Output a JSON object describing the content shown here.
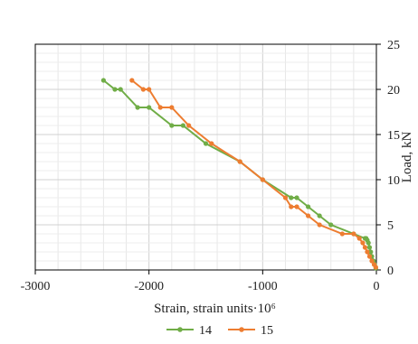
{
  "chart_data": {
    "type": "scatter",
    "title": "",
    "xlabel": "Strain, strain units·10⁶",
    "ylabel": "Load, kN",
    "xlim": [
      -3000,
      0
    ],
    "ylim": [
      0,
      25
    ],
    "xticks": [
      -3000,
      -2000,
      -1000,
      0
    ],
    "xtick_labels": [
      "-3000",
      "-2000",
      "-1000",
      "0"
    ],
    "yticks": [
      0,
      5,
      10,
      15,
      20,
      25
    ],
    "ytick_labels": [
      "0",
      "5",
      "10",
      "15",
      "20",
      "25"
    ],
    "y_axis_position": "right",
    "grid": true,
    "legend_position": "bottom",
    "series": [
      {
        "name": "14",
        "color": "#70ad47",
        "points": [
          [
            -5,
            0.2
          ],
          [
            -15,
            0.6
          ],
          [
            -25,
            1.0
          ],
          [
            -40,
            1.5
          ],
          [
            -50,
            2.0
          ],
          [
            -60,
            2.5
          ],
          [
            -70,
            3.0
          ],
          [
            -80,
            3.3
          ],
          [
            -90,
            3.5
          ],
          [
            -100,
            3.5
          ],
          [
            -200,
            4.0
          ],
          [
            -400,
            5.0
          ],
          [
            -500,
            6.0
          ],
          [
            -600,
            7.0
          ],
          [
            -700,
            8.0
          ],
          [
            -750,
            8.0
          ],
          [
            -1000,
            10.0
          ],
          [
            -1200,
            12.0
          ],
          [
            -1500,
            14.0
          ],
          [
            -1700,
            16.0
          ],
          [
            -1800,
            16.0
          ],
          [
            -2000,
            18.0
          ],
          [
            -2100,
            18.0
          ],
          [
            -2250,
            20.0
          ],
          [
            -2300,
            20.0
          ],
          [
            -2400,
            21.0
          ]
        ]
      },
      {
        "name": "15",
        "color": "#ed7d31",
        "points": [
          [
            -5,
            0.3
          ],
          [
            -20,
            0.6
          ],
          [
            -40,
            1.0
          ],
          [
            -60,
            1.5
          ],
          [
            -80,
            2.0
          ],
          [
            -100,
            2.5
          ],
          [
            -120,
            3.0
          ],
          [
            -150,
            3.5
          ],
          [
            -200,
            4.0
          ],
          [
            -300,
            4.0
          ],
          [
            -500,
            5.0
          ],
          [
            -600,
            6.0
          ],
          [
            -700,
            7.0
          ],
          [
            -750,
            7.0
          ],
          [
            -800,
            8.0
          ],
          [
            -1000,
            10.0
          ],
          [
            -1200,
            12.0
          ],
          [
            -1450,
            14.0
          ],
          [
            -1650,
            16.0
          ],
          [
            -1800,
            18.0
          ],
          [
            -1900,
            18.0
          ],
          [
            -2000,
            20.0
          ],
          [
            -2050,
            20.0
          ],
          [
            -2150,
            21.0
          ]
        ]
      }
    ]
  }
}
